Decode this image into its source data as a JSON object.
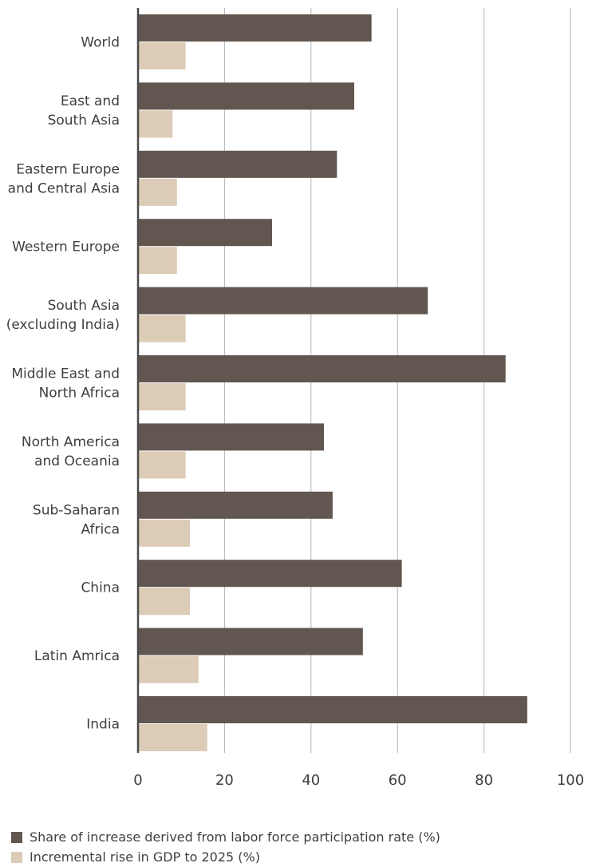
{
  "chart_data": {
    "type": "bar",
    "orientation": "horizontal",
    "title": "",
    "xlabel": "",
    "ylabel": "",
    "xlim": [
      0,
      100
    ],
    "ticks": [
      0,
      20,
      40,
      60,
      80,
      100
    ],
    "tick_labels": [
      "0",
      "20",
      "40",
      "60",
      "80",
      "100"
    ],
    "grid": true,
    "legend_position": "bottom-left",
    "categories": [
      [
        "World"
      ],
      [
        "East and",
        "South Asia"
      ],
      [
        "Eastern Europe",
        "and Central Asia"
      ],
      [
        "Western Europe"
      ],
      [
        "South Asia",
        "(excluding India)"
      ],
      [
        "Middle East and",
        "North Africa"
      ],
      [
        "North America",
        "and Oceania"
      ],
      [
        "Sub-Saharan",
        "Africa"
      ],
      [
        "China"
      ],
      [
        "Latin Amrica"
      ],
      [
        "India"
      ]
    ],
    "series": [
      {
        "name": "Share of increase derived from labor force participation rate (%)",
        "color": "#625750",
        "values": [
          54,
          50,
          46,
          31,
          67,
          85,
          43,
          45,
          61,
          52,
          90
        ]
      },
      {
        "name": "Incremental rise in GDP to 2025 (%)",
        "color": "#dccbb6",
        "values": [
          11,
          8,
          9,
          9,
          11,
          11,
          11,
          12,
          12,
          14,
          16
        ]
      }
    ]
  }
}
